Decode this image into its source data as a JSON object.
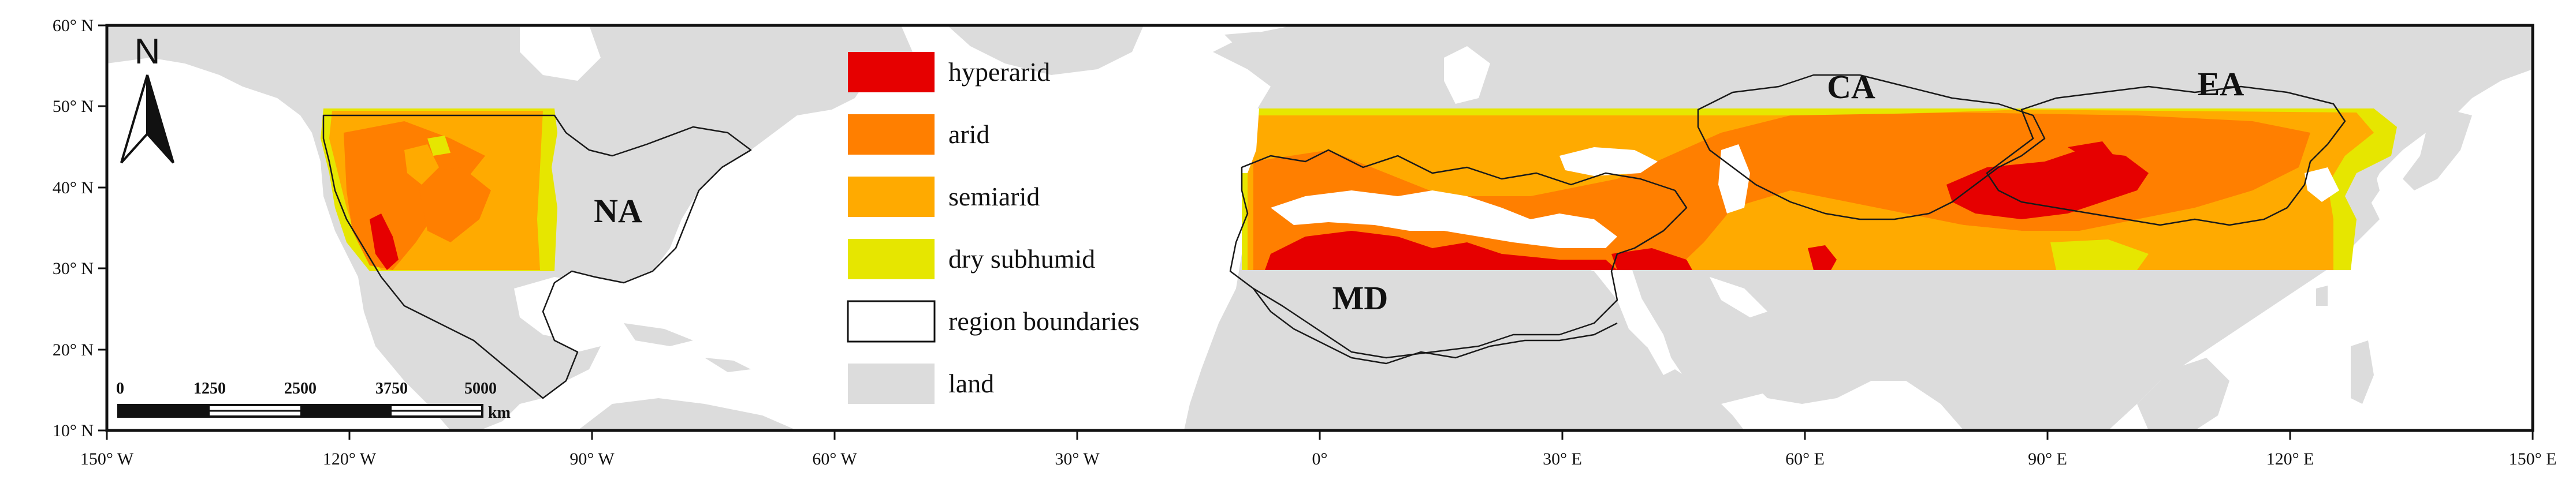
{
  "map": {
    "north_label": "N",
    "colors": {
      "hyperarid": "#e60000",
      "arid": "#ff7f00",
      "semiarid": "#ffaa00",
      "dry_subhumid": "#e6e600",
      "land": "#dcdcdc",
      "boundary": "#1a1a1a"
    },
    "lat_ticks": [
      "60° N",
      "50° N",
      "40° N",
      "30° N",
      "20° N",
      "10° N"
    ],
    "lon_ticks": [
      "150° W",
      "120° W",
      "90° W",
      "60° W",
      "30° W",
      "0°",
      "30° E",
      "60° E",
      "90° E",
      "120° E",
      "150° E"
    ],
    "legend": [
      {
        "key": "hyperarid",
        "label": "hyperarid",
        "color": "#e60000"
      },
      {
        "key": "arid",
        "label": "arid",
        "color": "#ff7f00"
      },
      {
        "key": "semiarid",
        "label": "semiarid",
        "color": "#ffaa00"
      },
      {
        "key": "dry_subhumid",
        "label": "dry subhumid",
        "color": "#e6e600"
      },
      {
        "key": "region_boundaries",
        "label": "region boundaries",
        "color": "#ffffff"
      },
      {
        "key": "land",
        "label": "land",
        "color": "#dcdcdc"
      }
    ],
    "regions": [
      {
        "key": "na",
        "label": "NA"
      },
      {
        "key": "md",
        "label": "MD"
      },
      {
        "key": "ca",
        "label": "CA"
      },
      {
        "key": "ea",
        "label": "EA"
      }
    ],
    "scale_bar": {
      "ticks": [
        "0",
        "1250",
        "2500",
        "3750",
        "5000"
      ],
      "unit": "km"
    }
  }
}
